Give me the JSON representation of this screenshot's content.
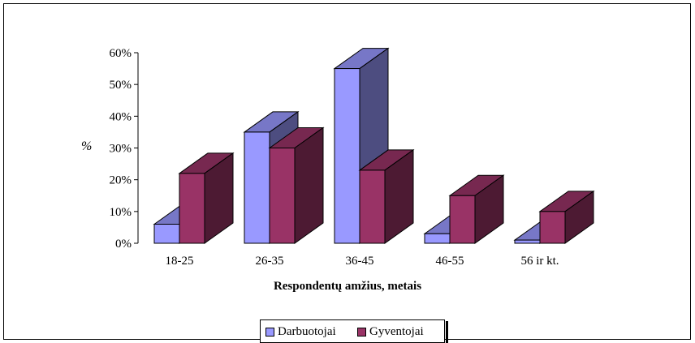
{
  "chart_data": {
    "type": "bar",
    "categories": [
      "18-25",
      "26-35",
      "36-45",
      "46-55",
      "56 ir kt."
    ],
    "series": [
      {
        "name": "Darbuotojai",
        "values": [
          6,
          35,
          55,
          3,
          1
        ],
        "color": "#9999ff"
      },
      {
        "name": "Gyventojai",
        "values": [
          22,
          30,
          23,
          15,
          10
        ],
        "color": "#993366"
      }
    ],
    "yticks": [
      "0%",
      "10%",
      "20%",
      "30%",
      "40%",
      "50%",
      "60%"
    ],
    "ylim": [
      0,
      60
    ],
    "ylabel": "%",
    "xlabel": "Respondentų amžius, metais",
    "legend_position": "bottom",
    "three_d": true
  }
}
